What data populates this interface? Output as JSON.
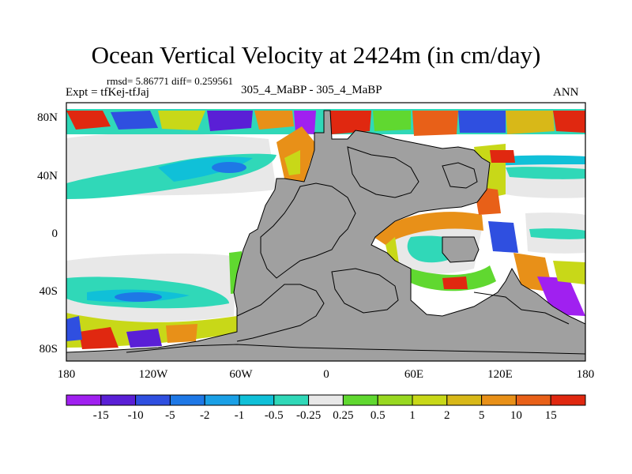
{
  "title": "Ocean Vertical Velocity at 2424m (in cm/day)",
  "stats_line": "rmsd= 5.86771 diff= 0.259561",
  "expt_label": "Expt = tfKej-tfJaj",
  "center_label": "305_4_MaBP - 305_4_MaBP",
  "season_label": "ANN",
  "map": {
    "land_color": "#a0a0a0",
    "lat_ticks": [
      "80N",
      "40N",
      "0",
      "40S",
      "80S"
    ],
    "lon_ticks": [
      "180",
      "120W",
      "60W",
      "0",
      "60E",
      "120E",
      "180"
    ]
  },
  "colorbar": {
    "labels": [
      "-15",
      "-10",
      "-5",
      "-2",
      "-1",
      "-0.5",
      "-0.25",
      "0.25",
      "0.5",
      "1",
      "2",
      "5",
      "10",
      "15"
    ],
    "colors": [
      "#a020f0",
      "#5a1fd6",
      "#2f4fe0",
      "#1e78e6",
      "#1aa0e6",
      "#10c0d8",
      "#30d8b8",
      "#e8e8e8",
      "#60d830",
      "#98d820",
      "#c8d818",
      "#d8b818",
      "#e89018",
      "#e86018",
      "#e02810"
    ]
  }
}
